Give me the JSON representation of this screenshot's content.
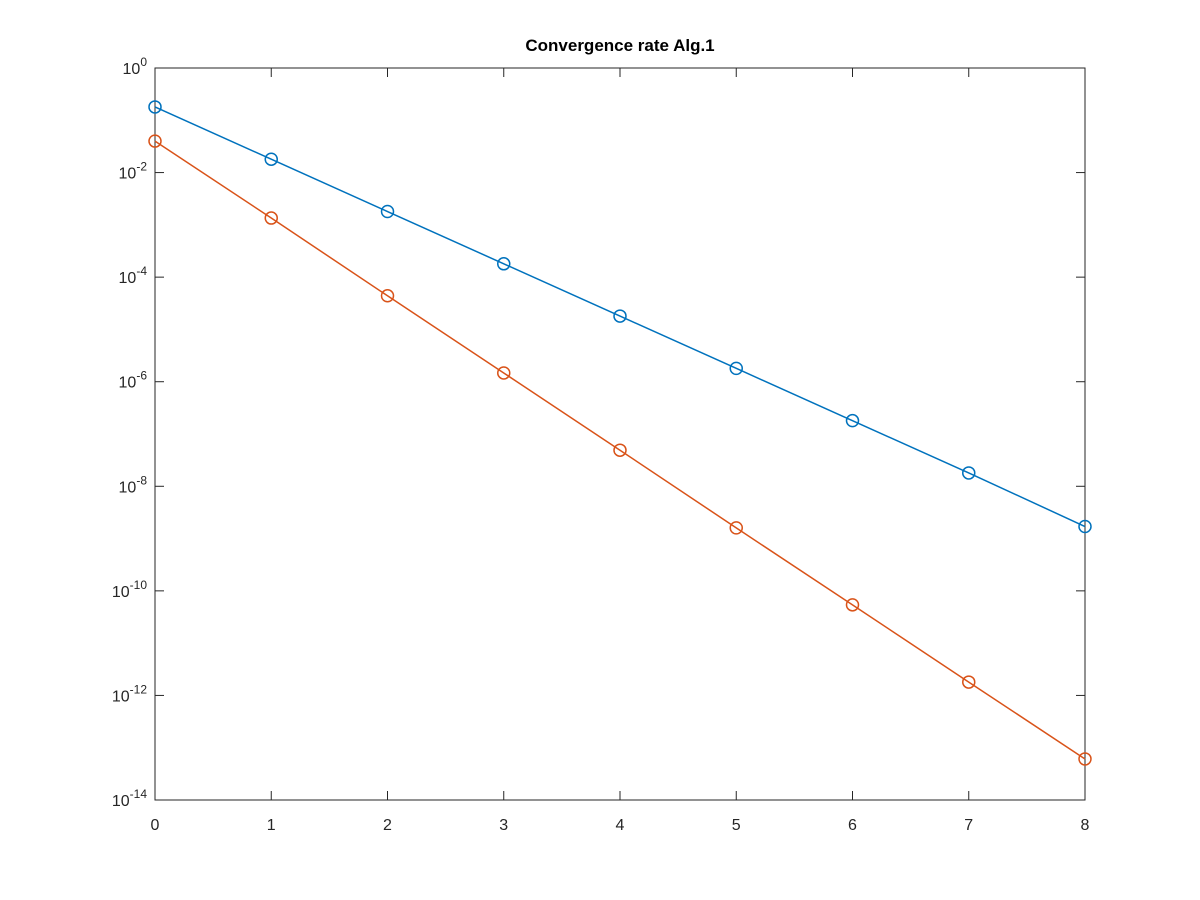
{
  "chart_data": {
    "type": "line",
    "title": "Convergence rate Alg.1",
    "x": [
      0,
      1,
      2,
      3,
      4,
      5,
      6,
      7,
      8
    ],
    "series": [
      {
        "color": "#0072bd",
        "values": [
          0.18,
          0.018,
          0.0018,
          0.00018,
          1.8e-05,
          1.8e-06,
          1.8e-07,
          1.8e-08,
          1.7e-09
        ]
      },
      {
        "color": "#d95319",
        "values": [
          0.04,
          0.00135,
          4.4e-05,
          1.47e-06,
          4.9e-08,
          1.6e-09,
          5.4e-11,
          1.8e-12,
          6.1e-14
        ]
      }
    ],
    "xlim": [
      0,
      8
    ],
    "xticks": [
      0,
      1,
      2,
      3,
      4,
      5,
      6,
      7,
      8
    ],
    "ylim": [
      1e-14,
      1
    ],
    "yticks": [
      {
        "value": 1e-14,
        "label": "10^-14"
      },
      {
        "value": 1e-12,
        "label": "10^-12"
      },
      {
        "value": 1e-10,
        "label": "10^-10"
      },
      {
        "value": 1e-08,
        "label": "10^-8"
      },
      {
        "value": 1e-06,
        "label": "10^-6"
      },
      {
        "value": 0.0001,
        "label": "10^-4"
      },
      {
        "value": 0.01,
        "label": "10^-2"
      },
      {
        "value": 1,
        "label": "10^0"
      }
    ],
    "log_y": true,
    "grid": false,
    "marker": "circle"
  }
}
